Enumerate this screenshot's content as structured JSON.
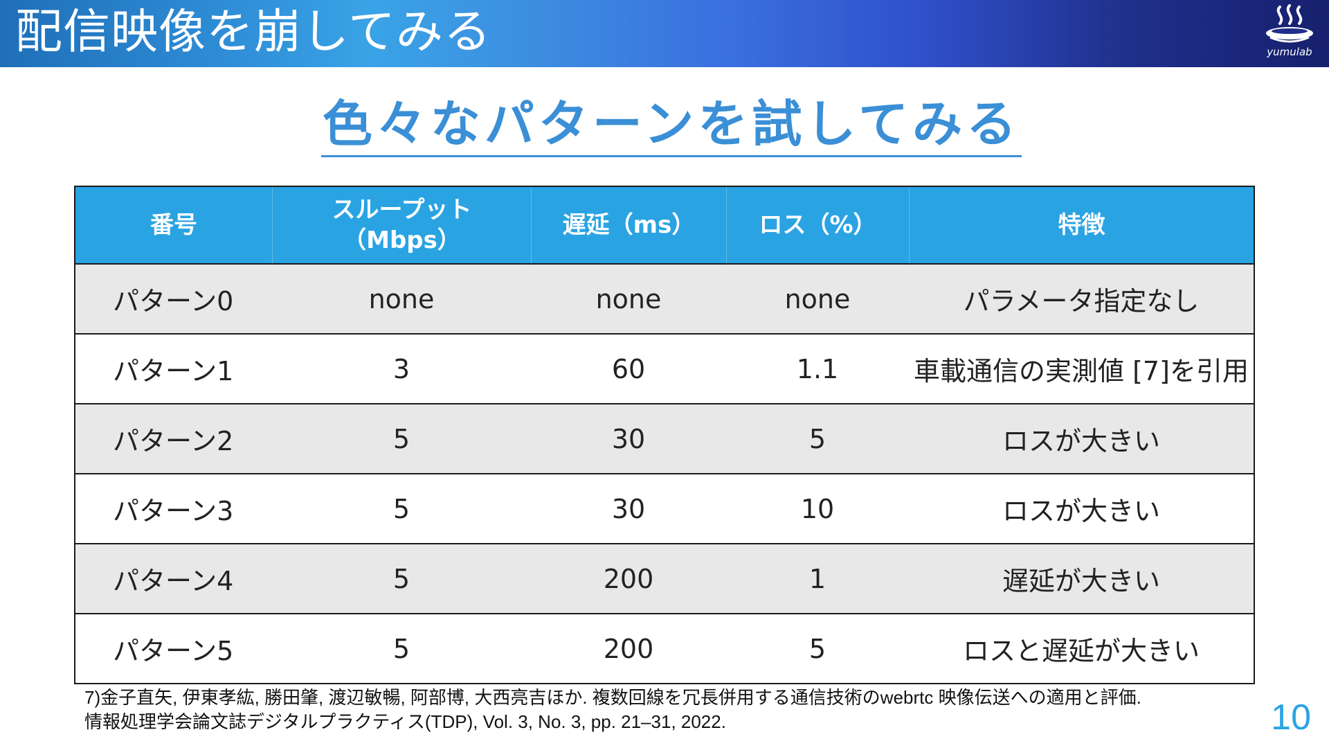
{
  "header": {
    "title": "配信映像を崩してみる",
    "logo_icon": "onsen-steam-icon",
    "logo_text": "yumulab"
  },
  "subtitle": "色々なパターンを試してみる",
  "table": {
    "columns": [
      "番号",
      "スループット\n（Mbps）",
      "遅延（ms）",
      "ロス（%）",
      "特徴"
    ],
    "rows": [
      [
        "パターン0",
        "none",
        "none",
        "none",
        "パラメータ指定なし"
      ],
      [
        "パターン1",
        "3",
        "60",
        "1.1",
        "車載通信の実測値 [7]を引用"
      ],
      [
        "パターン2",
        "5",
        "30",
        "5",
        "ロスが大きい"
      ],
      [
        "パターン3",
        "5",
        "30",
        "10",
        "ロスが大きい"
      ],
      [
        "パターン4",
        "5",
        "200",
        "1",
        "遅延が大きい"
      ],
      [
        "パターン5",
        "5",
        "200",
        "5",
        "ロスと遅延が大きい"
      ]
    ]
  },
  "footnote": {
    "line1": "7)金子直矢, 伊東孝紘, 勝田肇, 渡辺敏暢, 阿部博, 大西亮吉ほか. 複数回線を冗長併用する通信技術のwebrtc 映像伝送への適用と評価.",
    "line2": "情報処理学会論文誌デジタルプラクティス(TDP), Vol. 3, No. 3, pp. 21–31, 2022."
  },
  "page_number": "10",
  "colors": {
    "accent": "#2aa3e3",
    "subtitle": "#3a8fd6",
    "row_shade": "#e8e8e8"
  }
}
